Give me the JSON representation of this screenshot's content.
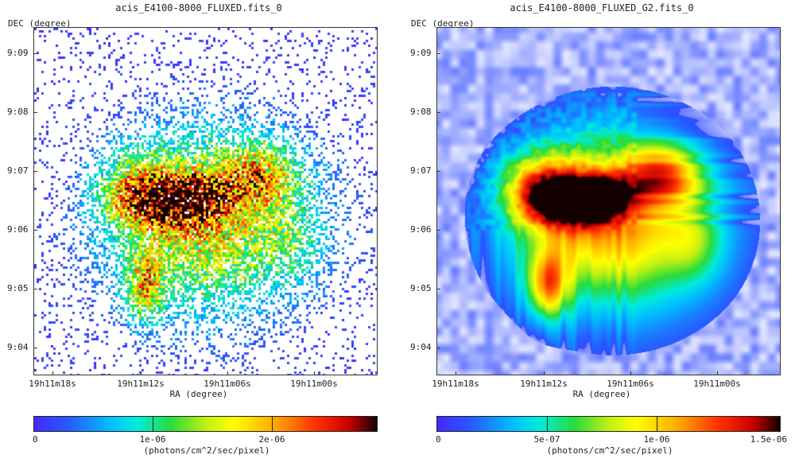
{
  "panels": [
    {
      "title": "acis_E4100-8000_FLUXED.fits_0",
      "y_axis_label": "DEC (degree)",
      "x_axis_label": "RA (degree)",
      "y_ticks": [
        "9:09",
        "9:08",
        "9:07",
        "9:06",
        "9:05",
        "9:04"
      ],
      "x_ticks": [
        "19h11m18s",
        "19h11m12s",
        "19h11m06s",
        "19h11m00s"
      ],
      "colorbar": {
        "labels": [
          "0",
          "1e-06",
          "2e-06"
        ],
        "unit": "(photons/cm^2/sec/pixel)"
      },
      "style": "noisy"
    },
    {
      "title": "acis_E4100-8000_FLUXED_G2.fits_0",
      "y_axis_label": "DEC (degree)",
      "x_axis_label": "RA (degree)",
      "y_ticks": [
        "9:09",
        "9:08",
        "9:07",
        "9:06",
        "9:05",
        "9:04"
      ],
      "x_ticks": [
        "19h11m18s",
        "19h11m12s",
        "19h11m06s",
        "19h11m00s"
      ],
      "colorbar": {
        "labels": [
          "0",
          "5e-07",
          "1e-06",
          "1.5e-06"
        ],
        "unit": "(photons/cm^2/sec/pixel)"
      },
      "style": "smooth"
    }
  ],
  "chart_data": [
    {
      "type": "heatmap",
      "title": "acis_E4100-8000_FLUXED.fits_0",
      "xlabel": "RA (degree)",
      "ylabel": "DEC (degree)",
      "x_tick_labels": [
        "19h11m18s",
        "19h11m12s",
        "19h11m06s",
        "19h11m00s"
      ],
      "y_tick_labels": [
        "9:09",
        "9:08",
        "9:07",
        "9:06",
        "9:05",
        "9:04"
      ],
      "colorbar_label": "(photons/cm^2/sec/pixel)",
      "colorbar_ticks": [
        0,
        1e-06,
        2e-06
      ],
      "colorbar_range": [
        0,
        2.9e-06
      ],
      "colormap": "jet",
      "features": [
        {
          "description": "peak",
          "ra": "19h11m12s",
          "dec": "9:06:20",
          "value": 2.6e-06
        }
      ]
    },
    {
      "type": "heatmap",
      "title": "acis_E4100-8000_FLUXED_G2.fits_0",
      "xlabel": "RA (degree)",
      "ylabel": "DEC (degree)",
      "x_tick_labels": [
        "19h11m18s",
        "19h11m12s",
        "19h11m06s",
        "19h11m00s"
      ],
      "y_tick_labels": [
        "9:09",
        "9:08",
        "9:07",
        "9:06",
        "9:05",
        "9:04"
      ],
      "colorbar_label": "(photons/cm^2/sec/pixel)",
      "colorbar_ticks": [
        0,
        5e-07,
        1e-06,
        1.5e-06
      ],
      "colorbar_range": [
        0,
        1.55e-06
      ],
      "colormap": "jet",
      "features": [
        {
          "description": "peak",
          "ra": "19h11m11s",
          "dec": "9:06:25",
          "value": 1.5e-06
        }
      ]
    }
  ]
}
